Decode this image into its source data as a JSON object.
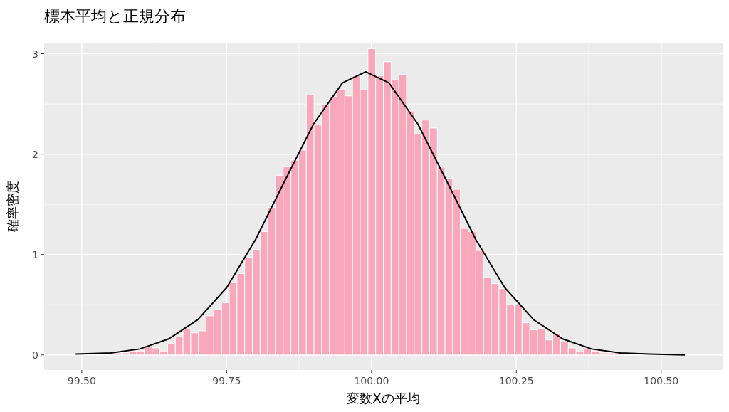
{
  "chart_data": {
    "type": "histogram",
    "title": "標本平均と正規分布",
    "xlabel": "変数Xの平均",
    "ylabel": "確率密度",
    "bins": [
      99.555,
      99.5683,
      99.5816,
      99.5949,
      99.6082,
      99.6215,
      99.6348,
      99.6481,
      99.6614,
      99.6747,
      99.688,
      99.7013,
      99.7146,
      99.7279,
      99.7412,
      99.7545,
      99.7678,
      99.7811,
      99.7944,
      99.8077,
      99.821,
      99.8343,
      99.8476,
      99.8609,
      99.8742,
      99.8875,
      99.9008,
      99.9141,
      99.9274,
      99.9407,
      99.954,
      99.9673,
      99.9806,
      99.9939,
      100.0072,
      100.0205,
      100.0338,
      100.0471,
      100.0604,
      100.0737,
      100.087,
      100.1003,
      100.1136,
      100.1269,
      100.1402,
      100.1535,
      100.1668,
      100.1801,
      100.1934,
      100.2067,
      100.22,
      100.2333,
      100.2466,
      100.2599,
      100.2732,
      100.2865,
      100.2998,
      100.3131,
      100.3264,
      100.3397,
      100.353,
      100.3663,
      100.3796,
      100.3929,
      100.4062,
      100.4195,
      100.4328
    ],
    "values": [
      0.02,
      0.02,
      0.04,
      0.04,
      0.08,
      0.07,
      0.04,
      0.11,
      0.18,
      0.26,
      0.22,
      0.24,
      0.39,
      0.45,
      0.52,
      0.72,
      0.81,
      0.97,
      1.05,
      1.23,
      1.47,
      1.79,
      1.88,
      1.94,
      2.04,
      2.59,
      2.29,
      2.49,
      2.57,
      2.64,
      2.58,
      2.78,
      2.64,
      3.05,
      2.78,
      2.92,
      2.74,
      2.79,
      2.43,
      2.2,
      2.34,
      2.26,
      1.87,
      1.76,
      1.65,
      1.26,
      1.23,
      1.04,
      0.77,
      0.71,
      0.66,
      0.5,
      0.5,
      0.32,
      0.25,
      0.26,
      0.15,
      0.21,
      0.13,
      0.07,
      0.03,
      0.06,
      0.04,
      0.02,
      0.02,
      0.03
    ],
    "color": "#f9a7bb",
    "series": [
      {
        "type": "line",
        "color": "#000000",
        "x": [
          99.49,
          99.55,
          99.6,
          99.65,
          99.7,
          99.75,
          99.8,
          99.85,
          99.9,
          99.95,
          99.99,
          100.03,
          100.08,
          100.13,
          100.18,
          100.23,
          100.28,
          100.33,
          100.38,
          100.43,
          100.48,
          100.54
        ],
        "values": [
          0.01,
          0.02,
          0.06,
          0.16,
          0.35,
          0.67,
          1.15,
          1.73,
          2.3,
          2.71,
          2.82,
          2.71,
          2.3,
          1.73,
          1.15,
          0.67,
          0.35,
          0.16,
          0.06,
          0.02,
          0.01,
          0.0
        ]
      }
    ],
    "xlim": [
      99.435,
      100.606
    ],
    "ylim": [
      -0.15,
      3.11
    ],
    "xticks": [
      {
        "value": 99.5,
        "label": "99.50"
      },
      {
        "value": 99.75,
        "label": "99.75"
      },
      {
        "value": 100.0,
        "label": "100.00"
      },
      {
        "value": 100.25,
        "label": "100.25"
      },
      {
        "value": 100.5,
        "label": "100.50"
      }
    ],
    "yticks": [
      0,
      1,
      2,
      3
    ],
    "grid": true
  }
}
